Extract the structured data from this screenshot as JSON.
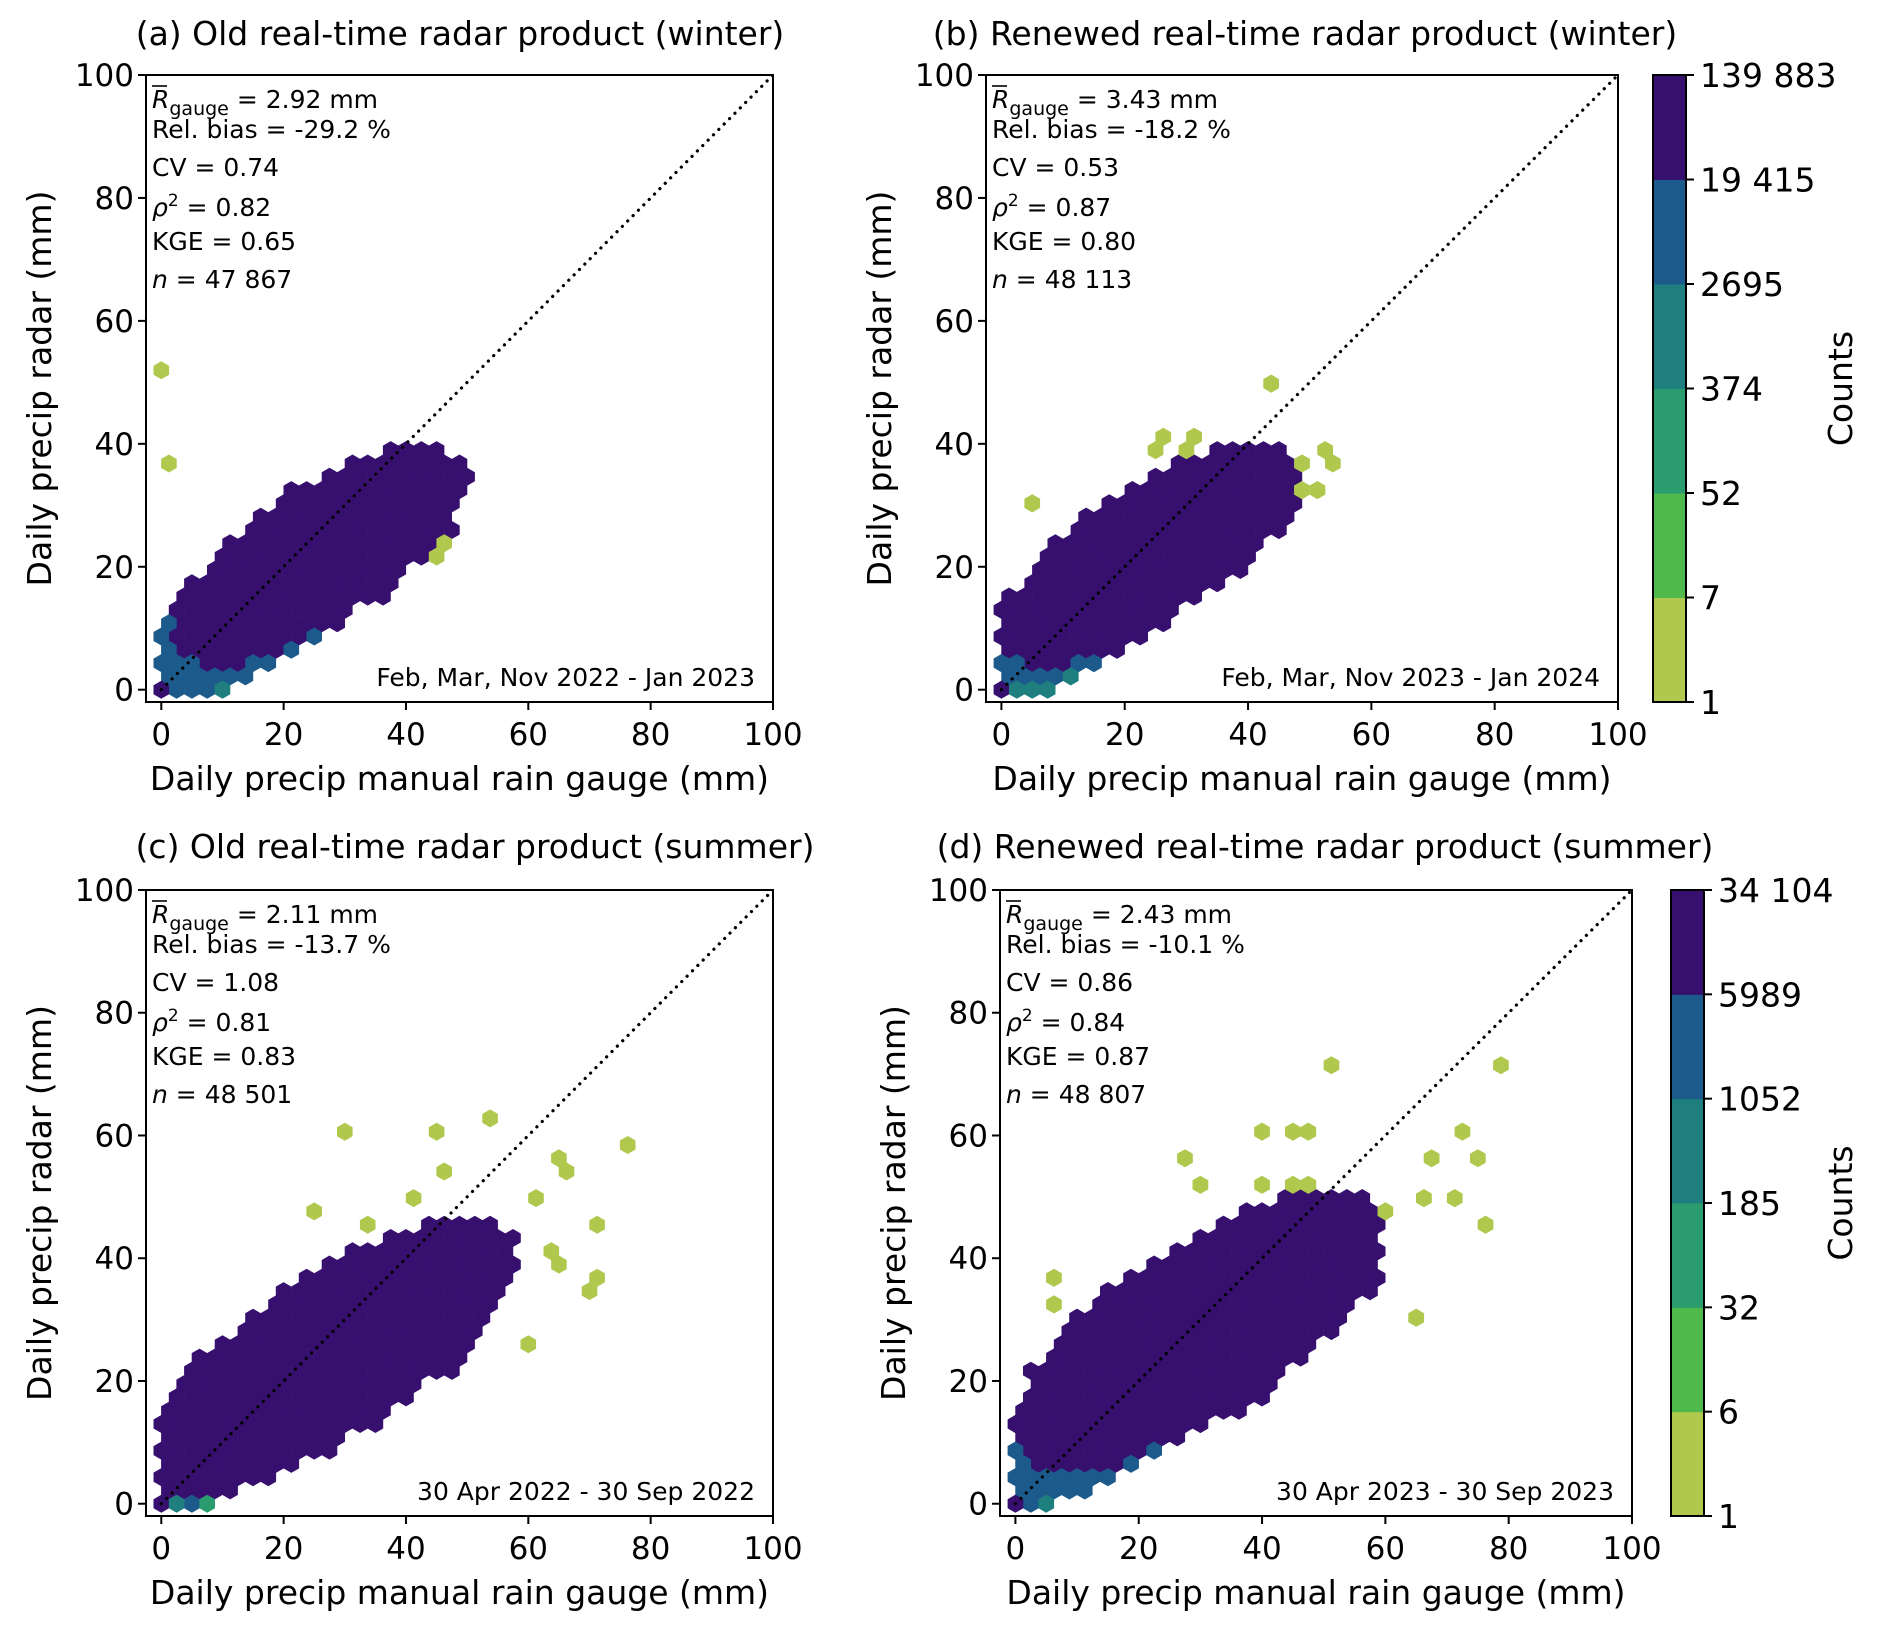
{
  "chart_data": [
    {
      "id": "a",
      "type": "heatmap",
      "subtype": "hexbin",
      "title": "(a) Old real-time radar product (winter)",
      "xlabel": "Daily precip manual rain gauge (mm)",
      "ylabel": "Daily precip radar (mm)",
      "xlim": [
        -2.5,
        100
      ],
      "ylim": [
        -2,
        100
      ],
      "xticks": [
        0,
        20,
        40,
        60,
        80,
        100
      ],
      "yticks": [
        0,
        20,
        40,
        60,
        80,
        100
      ],
      "reference_line": "1:1 dotted",
      "stats": {
        "r_gauge": "= 2.92 mm",
        "rel_bias": "Rel. bias = -29.2 %",
        "cv": "CV = 0.74",
        "rho2": "= 0.82",
        "kge": "KGE = 0.65",
        "n": "= 47 867"
      },
      "period": "Feb, Mar, Nov 2022 - Jan 2023",
      "colorbar": {
        "label": "Counts",
        "ticks": [
          "139 883",
          "19 415",
          "2695",
          "374",
          "52",
          "7",
          "1"
        ],
        "shared_with": "b"
      },
      "clusters": {
        "core": [
          [
            0,
            0,
            1,
            1,
            6
          ],
          [
            3,
            3,
            5,
            4,
            5
          ],
          [
            8,
            7,
            9,
            7,
            4
          ],
          [
            13,
            11,
            13,
            10,
            3
          ],
          [
            18,
            15,
            14,
            12,
            2
          ],
          [
            26,
            22,
            16,
            14,
            1
          ]
        ],
        "outliers": [
          [
            0,
            51
          ],
          [
            0,
            37
          ],
          [
            40,
            40
          ],
          [
            42,
            38
          ],
          [
            36,
            37
          ],
          [
            44,
            27
          ],
          [
            46,
            21
          ],
          [
            38,
            26
          ],
          [
            46,
            24
          ],
          [
            44,
            29
          ]
        ]
      }
    },
    {
      "id": "b",
      "type": "heatmap",
      "subtype": "hexbin",
      "title": "(b) Renewed real-time radar product (winter)",
      "xlabel": "Daily precip manual rain gauge (mm)",
      "ylabel": "Daily precip radar (mm)",
      "xlim": [
        -2.5,
        100
      ],
      "ylim": [
        -2,
        100
      ],
      "xticks": [
        0,
        20,
        40,
        60,
        80,
        100
      ],
      "yticks": [
        0,
        20,
        40,
        60,
        80,
        100
      ],
      "reference_line": "1:1 dotted",
      "stats": {
        "r_gauge": "= 3.43 mm",
        "rel_bias": "Rel. bias = -18.2 %",
        "cv": "CV = 0.53",
        "rho2": "= 0.87",
        "kge": "KGE = 0.80",
        "n": "= 48 113"
      },
      "period": "Feb, Mar, Nov 2023 - Jan 2024",
      "clusters": {
        "core": [
          [
            0,
            0,
            1,
            1,
            6
          ],
          [
            2,
            2,
            4,
            3,
            5
          ],
          [
            6,
            5,
            7,
            6,
            4
          ],
          [
            12,
            11,
            11,
            9,
            3
          ],
          [
            16,
            15,
            13,
            11,
            2
          ],
          [
            24,
            22,
            16,
            14,
            1
          ]
        ],
        "outliers": [
          [
            44,
            49
          ],
          [
            25,
            42
          ],
          [
            30,
            42
          ],
          [
            31,
            40
          ],
          [
            25,
            39
          ],
          [
            48,
            37
          ],
          [
            52,
            38
          ],
          [
            53,
            36
          ],
          [
            48,
            33
          ],
          [
            52,
            33
          ],
          [
            5,
            31
          ],
          [
            3,
            14
          ]
        ]
      }
    },
    {
      "id": "c",
      "type": "heatmap",
      "subtype": "hexbin",
      "title": "(c) Old real-time radar product (summer)",
      "xlabel": "Daily precip manual rain gauge (mm)",
      "ylabel": "Daily precip radar (mm)",
      "xlim": [
        -2.5,
        100
      ],
      "ylim": [
        -2,
        100
      ],
      "xticks": [
        0,
        20,
        40,
        60,
        80,
        100
      ],
      "yticks": [
        0,
        20,
        40,
        60,
        80,
        100
      ],
      "reference_line": "1:1 dotted",
      "stats": {
        "r_gauge": "= 2.11 mm",
        "rel_bias": "Rel. bias = -13.7 %",
        "cv": "CV = 1.08",
        "rho2": "= 0.81",
        "kge": "KGE = 0.83",
        "n": "= 48 501"
      },
      "period": "30 Apr 2022 - 30 Sep 2022",
      "colorbar": {
        "label": "Counts",
        "ticks": [
          "34 104",
          "5989",
          "1052",
          "185",
          "32",
          "6",
          "1"
        ],
        "shared_with": "d"
      },
      "clusters": {
        "core": [
          [
            0,
            0,
            1,
            1,
            6
          ],
          [
            2,
            2,
            4,
            3,
            5
          ],
          [
            5,
            5,
            7,
            6,
            4
          ],
          [
            12,
            11,
            11,
            9,
            3
          ],
          [
            18,
            16,
            14,
            12,
            2
          ],
          [
            28,
            24,
            20,
            17,
            1
          ]
        ],
        "outliers": [
          [
            30,
            60
          ],
          [
            44,
            61
          ],
          [
            53,
            63
          ],
          [
            75,
            58
          ],
          [
            66,
            56
          ],
          [
            65,
            54
          ],
          [
            46,
            55
          ],
          [
            62,
            50
          ],
          [
            70,
            46
          ],
          [
            64,
            41
          ],
          [
            65,
            39
          ],
          [
            71,
            37
          ],
          [
            69,
            35
          ],
          [
            61,
            27
          ],
          [
            40,
            49
          ],
          [
            25,
            47
          ],
          [
            34,
            46
          ],
          [
            42,
            43
          ],
          [
            50,
            44
          ],
          [
            57,
            42
          ],
          [
            56,
            38
          ],
          [
            52,
            35
          ],
          [
            60,
            25
          ]
        ]
      }
    },
    {
      "id": "d",
      "type": "heatmap",
      "subtype": "hexbin",
      "title": "(d) Renewed real-time radar product (summer)",
      "xlabel": "Daily precip manual rain gauge (mm)",
      "ylabel": "Daily precip radar (mm)",
      "xlim": [
        -2.5,
        100
      ],
      "ylim": [
        -2,
        100
      ],
      "xticks": [
        0,
        20,
        40,
        60,
        80,
        100
      ],
      "yticks": [
        0,
        20,
        40,
        60,
        80,
        100
      ],
      "reference_line": "1:1 dotted",
      "stats": {
        "r_gauge": "= 2.43 mm",
        "rel_bias": "Rel. bias = -10.1 %",
        "cv": "CV = 0.86",
        "rho2": "= 0.84",
        "kge": "KGE = 0.87",
        "n": "= 48 807"
      },
      "period": "30 Apr 2023 - 30 Sep 2023",
      "clusters": {
        "core": [
          [
            0,
            0,
            1,
            1,
            6
          ],
          [
            2,
            2,
            4,
            3,
            5
          ],
          [
            6,
            6,
            7,
            6,
            4
          ],
          [
            12,
            11,
            11,
            9,
            3
          ],
          [
            18,
            16,
            14,
            12,
            2
          ],
          [
            30,
            28,
            20,
            18,
            1
          ]
        ],
        "outliers": [
          [
            52,
            72
          ],
          [
            78,
            72
          ],
          [
            40,
            60
          ],
          [
            44,
            60
          ],
          [
            48,
            61
          ],
          [
            73,
            60
          ],
          [
            75,
            56
          ],
          [
            67,
            56
          ],
          [
            66,
            50
          ],
          [
            71,
            49
          ],
          [
            76,
            45
          ],
          [
            64,
            30
          ],
          [
            5,
            37
          ],
          [
            7,
            33
          ],
          [
            56,
            38
          ],
          [
            58,
            34
          ],
          [
            54,
            40
          ],
          [
            53,
            43
          ],
          [
            61,
            48
          ],
          [
            48,
            52
          ],
          [
            28,
            56
          ],
          [
            30,
            53
          ],
          [
            40,
            52
          ],
          [
            46,
            52
          ]
        ]
      }
    }
  ],
  "colors": {
    "bins": [
      "#b0c84e",
      "#4fb94b",
      "#2a9c6d",
      "#1f7f7f",
      "#1b5a8a",
      "#360f6f",
      "#3a0f70"
    ],
    "frame": "#000000",
    "background": "#ffffff"
  }
}
